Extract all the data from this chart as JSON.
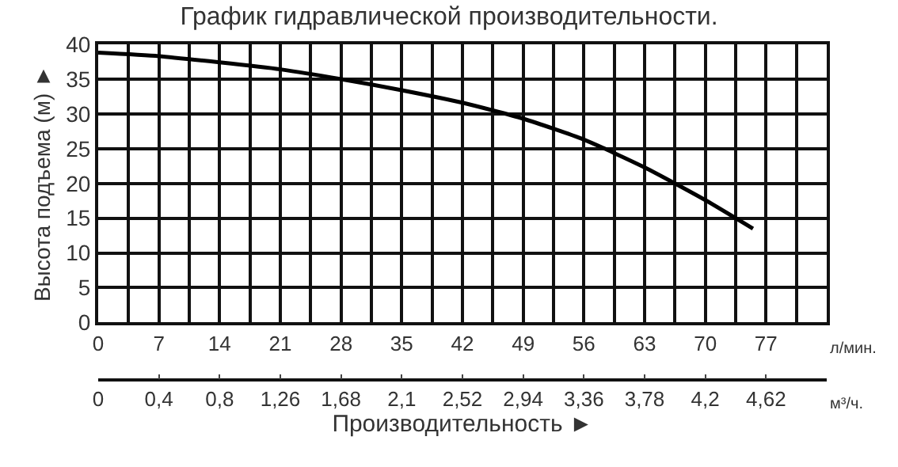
{
  "chart_data": {
    "type": "line",
    "title": "График гидравлической производительности.",
    "xlabel": "Производительность ►",
    "ylabel": "Высота подъема (м) ►",
    "x": [
      0,
      7,
      14,
      21,
      28,
      35,
      42,
      49,
      56,
      63,
      70,
      75.5
    ],
    "series": [
      {
        "color": "#000000",
        "values": [
          38.8,
          38.3,
          37.4,
          36.4,
          35.0,
          33.4,
          31.6,
          29.3,
          26.3,
          22.3,
          17.6,
          13.5
        ]
      }
    ],
    "xlim": [
      0,
      84
    ],
    "xticks": [
      0,
      7,
      14,
      21,
      28,
      35,
      42,
      49,
      56,
      63,
      70,
      77
    ],
    "x2lim": [
      0,
      5.04
    ],
    "x2ticks": [
      {
        "value": 0,
        "label": "0"
      },
      {
        "value": 0.42,
        "label": "0,4"
      },
      {
        "value": 0.84,
        "label": "0,8"
      },
      {
        "value": 1.26,
        "label": "1,26"
      },
      {
        "value": 1.68,
        "label": "1,68"
      },
      {
        "value": 2.1,
        "label": "2,1"
      },
      {
        "value": 2.52,
        "label": "2,52"
      },
      {
        "value": 2.94,
        "label": "2,94"
      },
      {
        "value": 3.36,
        "label": "3,36"
      },
      {
        "value": 3.78,
        "label": "3,78"
      },
      {
        "value": 4.2,
        "label": "4,2"
      },
      {
        "value": 4.62,
        "label": "4,62"
      }
    ],
    "ylim": [
      0,
      40
    ],
    "yticks": [
      0,
      5,
      10,
      15,
      20,
      25,
      30,
      35,
      40
    ],
    "annotations": [
      "л/мин.",
      "м³/ч."
    ],
    "grid": true,
    "marker": "none",
    "line_style": "solid"
  }
}
